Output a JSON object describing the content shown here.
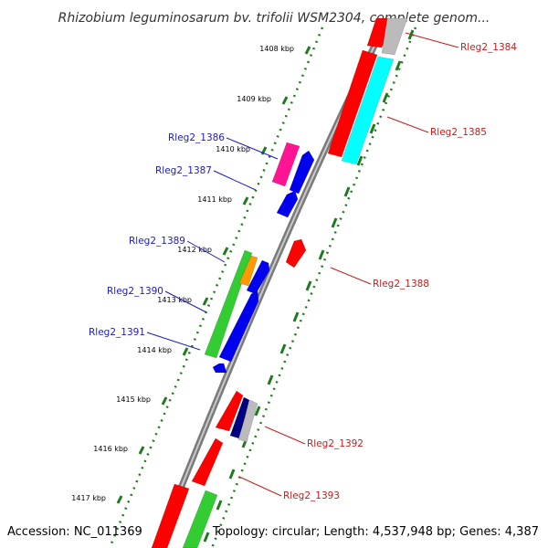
{
  "title": "Rhizobium leguminosarum bv. trifolii WSM2304, complete genom...",
  "footer": {
    "accession": "Accession: NC_011369",
    "summary": "Topology: circular; Length: 4,537,948 bp; Genes: 4,387"
  },
  "kbp_ticks": [
    "1408 kbp",
    "1409 kbp",
    "1410 kbp",
    "1411 kbp",
    "1412 kbp",
    "1413 kbp",
    "1414 kbp",
    "1415 kbp",
    "1416 kbp",
    "1417 kbp"
  ],
  "gene_labels": {
    "left": [
      "Rleg2_1386",
      "Rleg2_1387",
      "Rleg2_1389",
      "Rleg2_1390",
      "Rleg2_1391"
    ],
    "right": [
      "Rleg2_1384",
      "Rleg2_1385",
      "Rleg2_1388",
      "Rleg2_1392",
      "Rleg2_1393"
    ]
  },
  "colors": {
    "left_label": "#1a1acc",
    "right_label": "#cc1a1a",
    "backbone": "#888888",
    "tick": "#1e7a1e",
    "red": "#ff0000",
    "blue": "#0000ee",
    "green": "#33cc33",
    "cyan": "#00ffff",
    "magenta": "#ff1493",
    "orange": "#ff9900",
    "grey": "#bbbbbb",
    "navy": "#000080"
  }
}
